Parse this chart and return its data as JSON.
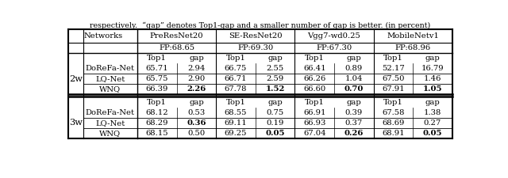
{
  "title_text": "respectively.  “gap” denotes Top1-gap and a smaller number of gap is better. (in percent)",
  "col_headers": [
    "Networks",
    "PreResNet20",
    "SE-ResNet20",
    "Vgg7-wd0.25",
    "MobileNetv1"
  ],
  "fp_rows": [
    "FP:68.65",
    "FP:69.30",
    "FP:67.30",
    "FP:68.96"
  ],
  "sections": [
    {
      "label": "2w",
      "rows": [
        {
          "name": "DoReFa-Net",
          "values": [
            "65.71",
            "2.94",
            "66.75",
            "2.55",
            "66.41",
            "0.89",
            "52.17",
            "16.79"
          ],
          "bold": [
            false,
            false,
            false,
            false,
            false,
            false,
            false,
            false
          ]
        },
        {
          "name": "LQ-Net",
          "values": [
            "65.75",
            "2.90",
            "66.71",
            "2.59",
            "66.26",
            "1.04",
            "67.50",
            "1.46"
          ],
          "bold": [
            false,
            false,
            false,
            false,
            false,
            false,
            false,
            false
          ]
        },
        {
          "name": "WNQ",
          "values": [
            "66.39",
            "2.26",
            "67.78",
            "1.52",
            "66.60",
            "0.70",
            "67.91",
            "1.05"
          ],
          "bold": [
            false,
            true,
            false,
            true,
            false,
            true,
            false,
            true
          ]
        }
      ]
    },
    {
      "label": "3w",
      "rows": [
        {
          "name": "DoReFa-Net",
          "values": [
            "68.12",
            "0.53",
            "68.55",
            "0.75",
            "66.91",
            "0.39",
            "67.58",
            "1.38"
          ],
          "bold": [
            false,
            false,
            false,
            false,
            false,
            false,
            false,
            false
          ]
        },
        {
          "name": "LQ-Net",
          "values": [
            "68.29",
            "0.36",
            "69.11",
            "0.19",
            "66.93",
            "0.37",
            "68.69",
            "0.27"
          ],
          "bold": [
            false,
            true,
            false,
            false,
            false,
            false,
            false,
            false
          ]
        },
        {
          "name": "WNQ",
          "values": [
            "68.15",
            "0.50",
            "69.25",
            "0.05",
            "67.04",
            "0.26",
            "68.91",
            "0.05"
          ],
          "bold": [
            false,
            false,
            false,
            true,
            false,
            true,
            false,
            true
          ]
        }
      ]
    }
  ],
  "bg_color": "#ffffff",
  "line_color": "#000000",
  "font_size": 7.2,
  "title_font_size": 6.8
}
